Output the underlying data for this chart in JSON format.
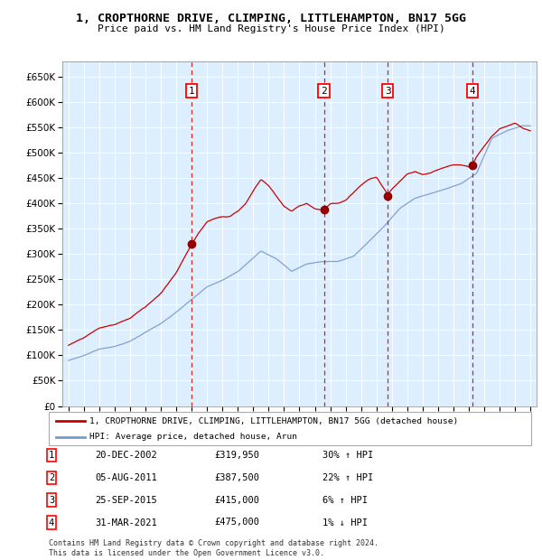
{
  "title": "1, CROPTHORNE DRIVE, CLIMPING, LITTLEHAMPTON, BN17 5GG",
  "subtitle": "Price paid vs. HM Land Registry's House Price Index (HPI)",
  "property_label": "1, CROPTHORNE DRIVE, CLIMPING, LITTLEHAMPTON, BN17 5GG (detached house)",
  "hpi_label": "HPI: Average price, detached house, Arun",
  "property_color": "#cc0000",
  "hpi_color": "#7799cc",
  "background_color": "#ddeeff",
  "transactions": [
    {
      "num": 1,
      "date": "20-DEC-2002",
      "price": "£319,950",
      "pct": "30%",
      "dir": "↑"
    },
    {
      "num": 2,
      "date": "05-AUG-2011",
      "price": "£387,500",
      "pct": "22%",
      "dir": "↑"
    },
    {
      "num": 3,
      "date": "25-SEP-2015",
      "price": "£415,000",
      "pct": "6%",
      "dir": "↑"
    },
    {
      "num": 4,
      "date": "31-MAR-2021",
      "price": "£475,000",
      "pct": "1%",
      "dir": "↓"
    }
  ],
  "transaction_years": [
    2002.97,
    2011.59,
    2015.73,
    2021.25
  ],
  "transaction_prices": [
    319950,
    387500,
    415000,
    475000
  ],
  "footer": "Contains HM Land Registry data © Crown copyright and database right 2024.\nThis data is licensed under the Open Government Licence v3.0.",
  "ylim": [
    0,
    680000
  ],
  "yticks": [
    0,
    50000,
    100000,
    150000,
    200000,
    250000,
    300000,
    350000,
    400000,
    450000,
    500000,
    550000,
    600000,
    650000
  ],
  "xlim_start": 1994.6,
  "xlim_end": 2025.4
}
